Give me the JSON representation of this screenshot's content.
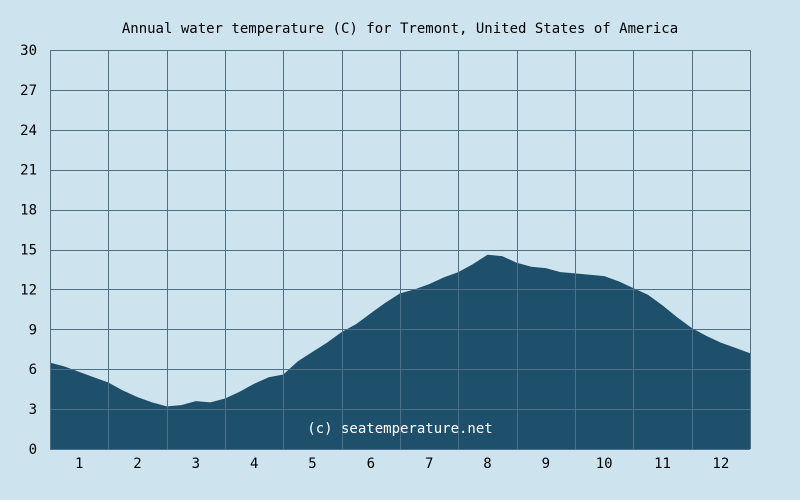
{
  "colors": {
    "background": "#cde3ee",
    "fill": "#1e4f6b",
    "grid": "#4f6f86",
    "text": "#000000"
  },
  "chart_data": {
    "type": "area",
    "title": "Annual water temperature (C) for Tremont, United States of America",
    "xlabel": "",
    "ylabel": "",
    "ylim": [
      0,
      30
    ],
    "yticks": [
      "0",
      "3",
      "6",
      "9",
      "12",
      "15",
      "18",
      "21",
      "24",
      "27",
      "30"
    ],
    "xlim": [
      0.5,
      12.5
    ],
    "xticks": [
      "1",
      "2",
      "3",
      "4",
      "5",
      "6",
      "7",
      "8",
      "9",
      "10",
      "11",
      "12"
    ],
    "grid": true,
    "watermark": "(c) seatemperature.net",
    "x": [
      0.5,
      0.75,
      1.0,
      1.25,
      1.5,
      1.75,
      2.0,
      2.25,
      2.5,
      2.75,
      3.0,
      3.25,
      3.5,
      3.75,
      4.0,
      4.25,
      4.5,
      4.75,
      5.0,
      5.25,
      5.5,
      5.75,
      6.0,
      6.25,
      6.5,
      6.75,
      7.0,
      7.25,
      7.5,
      7.75,
      8.0,
      8.25,
      8.5,
      8.75,
      9.0,
      9.25,
      9.5,
      9.75,
      10.0,
      10.25,
      10.5,
      10.75,
      11.0,
      11.25,
      11.5,
      11.75,
      12.0,
      12.25,
      12.5
    ],
    "y": [
      6.5,
      6.2,
      5.8,
      5.4,
      5.0,
      4.4,
      3.9,
      3.5,
      3.2,
      3.3,
      3.6,
      3.5,
      3.8,
      4.3,
      4.9,
      5.4,
      5.6,
      6.6,
      7.3,
      8.0,
      8.8,
      9.4,
      10.2,
      11.0,
      11.7,
      12.0,
      12.4,
      12.9,
      13.3,
      13.9,
      14.6,
      14.5,
      14.0,
      13.7,
      13.6,
      13.3,
      13.2,
      13.1,
      13.0,
      12.6,
      12.1,
      11.6,
      10.8,
      9.9,
      9.1,
      8.5,
      8.0,
      7.6,
      7.2
    ]
  }
}
